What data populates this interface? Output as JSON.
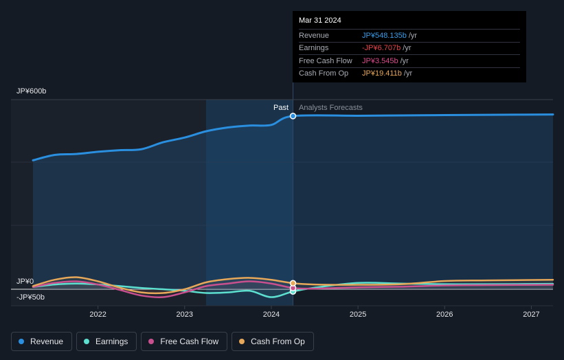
{
  "tooltip": {
    "date": "Mar 31 2024",
    "rows": [
      {
        "label": "Revenue",
        "value": "JP¥548.135b",
        "unit": "/yr",
        "color": "#3a9de8"
      },
      {
        "label": "Earnings",
        "value": "-JP¥6.707b",
        "unit": "/yr",
        "color": "#e8434b"
      },
      {
        "label": "Free Cash Flow",
        "value": "JP¥3.545b",
        "unit": "/yr",
        "color": "#d94a8c"
      },
      {
        "label": "Cash From Op",
        "value": "JP¥19.411b",
        "unit": "/yr",
        "color": "#e8a85a"
      }
    ]
  },
  "labels": {
    "past": "Past",
    "forecast": "Analysts Forecasts",
    "y_top": "JP¥600b",
    "y_zero": "JP¥0",
    "y_neg": "-JP¥50b"
  },
  "legend": [
    {
      "label": "Revenue",
      "color": "#2b8fe0"
    },
    {
      "label": "Earnings",
      "color": "#5de0d0"
    },
    {
      "label": "Free Cash Flow",
      "color": "#c9508f"
    },
    {
      "label": "Cash From Op",
      "color": "#e8a85a"
    }
  ],
  "chart_data": {
    "type": "line",
    "x_ticks": [
      "2022",
      "2023",
      "2024",
      "2025",
      "2026",
      "2027"
    ],
    "ylim": [
      -50,
      600
    ],
    "x_range": [
      2021.25,
      2027.25
    ],
    "past_until": 2024.25,
    "series": [
      {
        "name": "Revenue",
        "color": "#2b8fe0",
        "points": [
          [
            2021.25,
            408
          ],
          [
            2021.5,
            425
          ],
          [
            2021.75,
            428
          ],
          [
            2022.0,
            435
          ],
          [
            2022.25,
            440
          ],
          [
            2022.5,
            443
          ],
          [
            2022.75,
            465
          ],
          [
            2023.0,
            480
          ],
          [
            2023.25,
            500
          ],
          [
            2023.5,
            512
          ],
          [
            2023.75,
            518
          ],
          [
            2024.0,
            520
          ],
          [
            2024.25,
            548
          ],
          [
            2025.0,
            549
          ],
          [
            2025.5,
            550
          ],
          [
            2026.0,
            551
          ],
          [
            2026.5,
            552
          ],
          [
            2027.25,
            553
          ]
        ]
      },
      {
        "name": "Earnings",
        "color": "#5de0d0",
        "points": [
          [
            2021.25,
            7
          ],
          [
            2021.5,
            15
          ],
          [
            2021.75,
            18
          ],
          [
            2022.0,
            15
          ],
          [
            2022.25,
            10
          ],
          [
            2022.5,
            4
          ],
          [
            2022.75,
            0
          ],
          [
            2023.0,
            -5
          ],
          [
            2023.25,
            -12
          ],
          [
            2023.5,
            -10
          ],
          [
            2023.75,
            -5
          ],
          [
            2024.0,
            -25
          ],
          [
            2024.25,
            -7
          ],
          [
            2024.5,
            5
          ],
          [
            2025.0,
            20
          ],
          [
            2025.5,
            18
          ],
          [
            2026.0,
            16
          ],
          [
            2026.5,
            16
          ],
          [
            2027.25,
            17
          ]
        ]
      },
      {
        "name": "Free Cash Flow",
        "color": "#c9508f",
        "points": [
          [
            2021.25,
            7
          ],
          [
            2021.5,
            20
          ],
          [
            2021.75,
            25
          ],
          [
            2022.0,
            15
          ],
          [
            2022.25,
            -2
          ],
          [
            2022.5,
            -20
          ],
          [
            2022.75,
            -25
          ],
          [
            2023.0,
            -10
          ],
          [
            2023.25,
            10
          ],
          [
            2023.5,
            18
          ],
          [
            2023.75,
            25
          ],
          [
            2024.0,
            18
          ],
          [
            2024.25,
            4
          ],
          [
            2024.5,
            2
          ],
          [
            2025.0,
            6
          ],
          [
            2025.5,
            8
          ],
          [
            2026.0,
            12
          ],
          [
            2026.5,
            13
          ],
          [
            2027.25,
            14
          ]
        ]
      },
      {
        "name": "Cash From Op",
        "color": "#e8a85a",
        "points": [
          [
            2021.25,
            10
          ],
          [
            2021.5,
            30
          ],
          [
            2021.75,
            38
          ],
          [
            2022.0,
            25
          ],
          [
            2022.25,
            5
          ],
          [
            2022.5,
            -10
          ],
          [
            2022.75,
            -12
          ],
          [
            2023.0,
            0
          ],
          [
            2023.25,
            22
          ],
          [
            2023.5,
            32
          ],
          [
            2023.75,
            36
          ],
          [
            2024.0,
            30
          ],
          [
            2024.25,
            19
          ],
          [
            2024.5,
            15
          ],
          [
            2025.0,
            14
          ],
          [
            2025.5,
            16
          ],
          [
            2026.0,
            26
          ],
          [
            2026.5,
            28
          ],
          [
            2027.25,
            30
          ]
        ]
      }
    ]
  }
}
